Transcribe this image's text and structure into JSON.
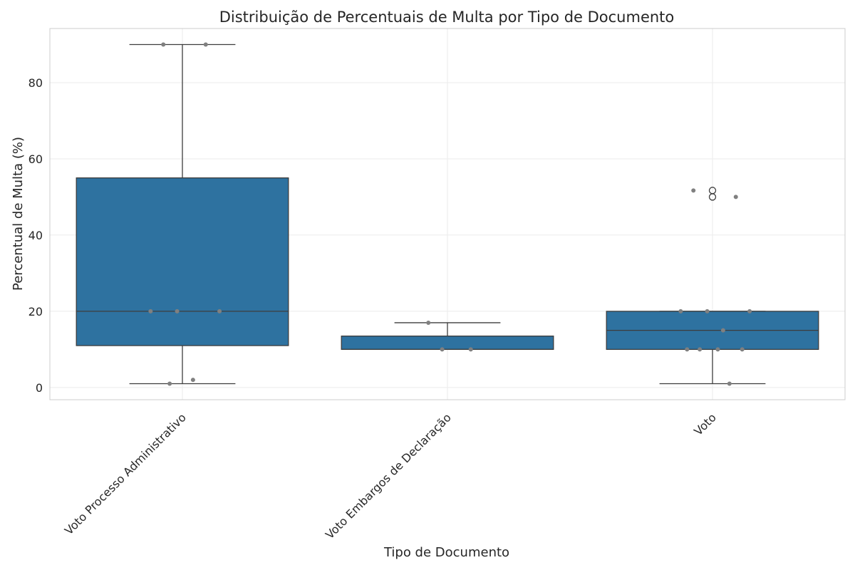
{
  "chart_data": {
    "type": "box",
    "title": "Distribuição de Percentuais de Multa por Tipo de Documento",
    "xlabel": "Tipo de Documento",
    "ylabel": "Percentual de Multa (%)",
    "ylim": [
      -3.2,
      94.2
    ],
    "yticks": [
      0,
      20,
      40,
      60,
      80
    ],
    "grid": true,
    "categories": [
      "Voto Processo Administrativo",
      "Voto Embargos de Declaração",
      "Voto"
    ],
    "boxes": [
      {
        "category": "Voto Processo Administrativo",
        "whisker_low": 1,
        "q1": 11,
        "median": 20,
        "q3": 55,
        "whisker_high": 90,
        "outliers": [],
        "points": [
          90,
          90,
          20,
          20,
          20,
          2,
          1
        ]
      },
      {
        "category": "Voto Embargos de Declaração",
        "whisker_low": 10,
        "q1": 10,
        "median": 10,
        "q3": 13.5,
        "whisker_high": 17,
        "outliers": [],
        "points": [
          17,
          10,
          10
        ]
      },
      {
        "category": "Voto",
        "whisker_low": 1,
        "q1": 10,
        "median": 15,
        "q3": 20,
        "whisker_high": 20,
        "outliers": [
          51.7,
          50
        ],
        "points": [
          51.7,
          50,
          20,
          20,
          20,
          15,
          10,
          10,
          10,
          10,
          1
        ]
      }
    ],
    "colors": {
      "box_fill": "#2e72a0",
      "line": "#3d3d3d",
      "point": "#808080",
      "grid": "#ebebeb",
      "spine": "#cccccc",
      "text": "#262626"
    }
  }
}
